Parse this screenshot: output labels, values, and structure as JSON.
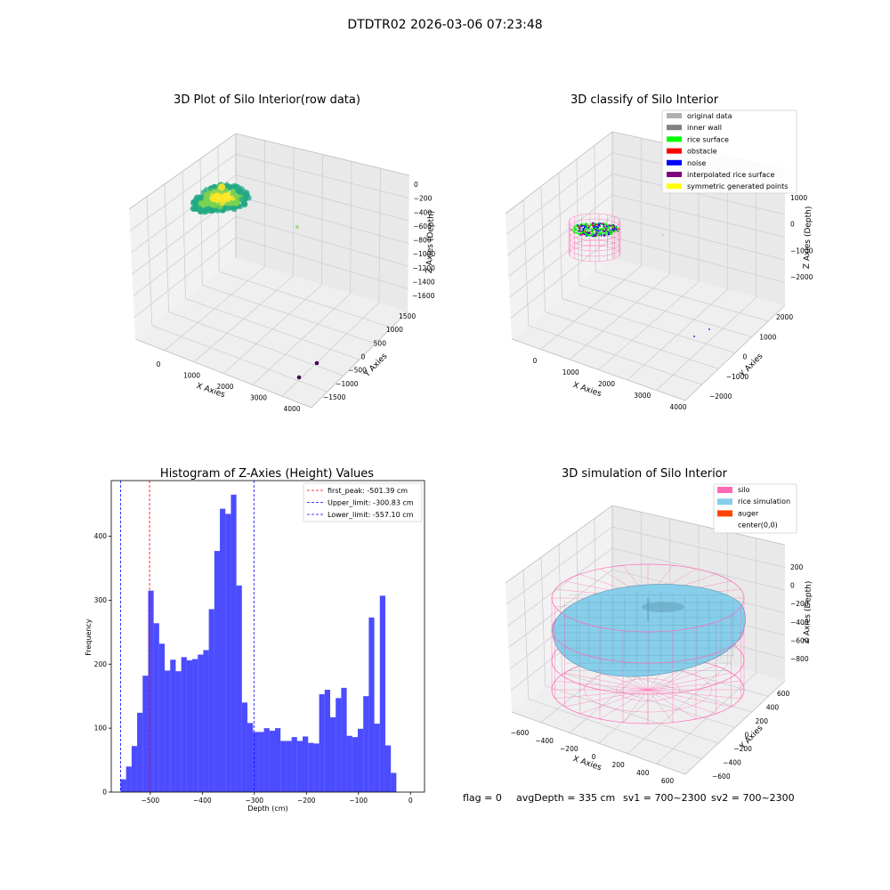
{
  "figure": {
    "suptitle": "DTDTR02 2026-03-06 07:23:48",
    "footer": {
      "flag": "flag = 0",
      "avg_depth": "avgDepth = 335 cm",
      "sv1": "sv1 = 700~2300",
      "sv2": "sv2 = 700~2300"
    }
  },
  "chart_data": [
    {
      "id": "raw",
      "type": "scatter",
      "title": "3D Plot of Silo Interior(row data)",
      "xlabel": "X Axies",
      "ylabel": "Y Axies",
      "zlabel": "Z Axies (Depth)",
      "xticks": [
        "0",
        "1000",
        "2000",
        "3000",
        "4000"
      ],
      "yticks": [
        "1500",
        "1000",
        "500",
        "0",
        "−500",
        "−1000",
        "−1500"
      ],
      "zticks": [
        "0",
        "−200",
        "−400",
        "−600",
        "−800",
        "−1000",
        "−1200",
        "−1400",
        "−1600"
      ],
      "colors": {
        "high": "#fde725",
        "mid": "#7ad151",
        "low": "#22a884",
        "outlier": "#440154"
      }
    },
    {
      "id": "classify",
      "type": "scatter",
      "title": "3D classify of Silo Interior",
      "xlabel": "X Axies",
      "ylabel": "Y Axies",
      "zlabel": "Z Axies (Depth)",
      "xticks": [
        "0",
        "1000",
        "2000",
        "3000",
        "4000"
      ],
      "yticks": [
        "2000",
        "1000",
        "0",
        "−1000",
        "−2000"
      ],
      "zticks": [
        "1000",
        "0",
        "−1000",
        "−2000"
      ],
      "legend": [
        {
          "label": "original data",
          "color": "#b0b0b0"
        },
        {
          "label": "inner wall",
          "color": "#808080"
        },
        {
          "label": "rice surface",
          "color": "#00ff00"
        },
        {
          "label": "obstacle",
          "color": "#ff0000"
        },
        {
          "label": "noise",
          "color": "#0000ff"
        },
        {
          "label": "interpolated rice surface",
          "color": "#800080"
        },
        {
          "label": "symmetric generated points",
          "color": "#ffff00"
        }
      ],
      "legend_position": "upper right"
    },
    {
      "id": "hist",
      "type": "bar",
      "title": "Histogram of Z-Axies (Height) Values",
      "xlabel": "Depth (cm)",
      "ylabel": "Frequency",
      "xlim": [
        -575,
        27
      ],
      "ylim": [
        0,
        487
      ],
      "xticks": [
        -500,
        -400,
        -300,
        -200,
        -100,
        0
      ],
      "yticks": [
        0,
        100,
        200,
        300,
        400
      ],
      "bar_color": "#0000ff",
      "bin_start": -557.1,
      "bin_width": 10.6,
      "counts": [
        20,
        40,
        72,
        124,
        182,
        315,
        264,
        232,
        190,
        207,
        189,
        211,
        206,
        208,
        215,
        222,
        286,
        377,
        443,
        435,
        465,
        323,
        140,
        108,
        94,
        94,
        100,
        96,
        100,
        80,
        80,
        86,
        80,
        87,
        77,
        76,
        153,
        160,
        117,
        147,
        163,
        88,
        86,
        99,
        150,
        273,
        107,
        307,
        73,
        30
      ],
      "lines": [
        {
          "label": "first_peak: -501.39 cm",
          "value": -501.39,
          "color": "#ff0000"
        },
        {
          "label": "Upper_limit: -300.83 cm",
          "value": -300.83,
          "color": "#0000ff"
        },
        {
          "label": "Lower_limit: -557.10 cm",
          "value": -557.1,
          "color": "#0000ff"
        }
      ],
      "legend_position": "upper right"
    },
    {
      "id": "sim",
      "type": "surface",
      "title": "3D simulation of Silo Interior",
      "xlabel": "X Axies",
      "ylabel": "Y Axies",
      "zlabel": "Z Axies (Depth)",
      "xticks": [
        "−600",
        "−400",
        "−200",
        "0",
        "200",
        "400",
        "600"
      ],
      "yticks": [
        "600",
        "400",
        "200",
        "0",
        "−200",
        "−400",
        "−600"
      ],
      "zticks": [
        "200",
        "0",
        "−200",
        "−400",
        "−600",
        "−800"
      ],
      "legend": [
        {
          "label": "silo",
          "color": "#ff69b4"
        },
        {
          "label": "rice simulation",
          "color": "#87ceeb"
        },
        {
          "label": "auger",
          "color": "#ff4500"
        },
        {
          "label": "center(0,0)",
          "color": "none"
        }
      ],
      "legend_position": "upper right"
    }
  ]
}
